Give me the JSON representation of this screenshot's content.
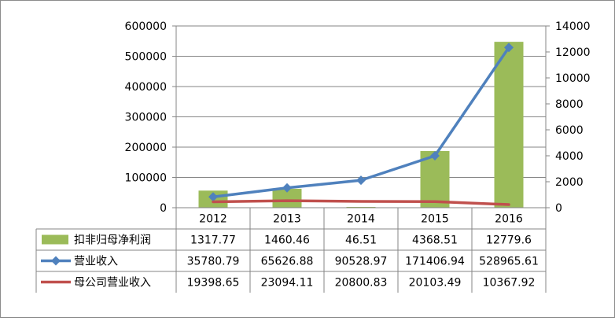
{
  "chart_data": {
    "type": "bar",
    "categories": [
      "2012",
      "2013",
      "2014",
      "2015",
      "2016"
    ],
    "left_axis": {
      "min": 0,
      "max": 600000,
      "step": 100000,
      "ticks": [
        "0",
        "100000",
        "200000",
        "300000",
        "400000",
        "500000",
        "600000"
      ]
    },
    "right_axis": {
      "min": 0,
      "max": 14000,
      "step": 2000,
      "ticks": [
        "0",
        "2000",
        "4000",
        "6000",
        "8000",
        "10000",
        "12000",
        "14000"
      ]
    },
    "series": [
      {
        "name": "扣非归母净利润",
        "type": "bar",
        "axis": "right",
        "color": "#9BBB59",
        "values": [
          1317.77,
          1460.46,
          46.51,
          4368.51,
          12779.6
        ],
        "labels": [
          "1317.77",
          "1460.46",
          "46.51",
          "4368.51",
          "12779.6"
        ]
      },
      {
        "name": "营业收入",
        "type": "line",
        "axis": "left",
        "color": "#4F81BD",
        "marker": "diamond",
        "values": [
          35780.79,
          65626.88,
          90528.97,
          171406.94,
          528965.61
        ],
        "labels": [
          "35780.79",
          "65626.88",
          "90528.97",
          "171406.94",
          "528965.61"
        ]
      },
      {
        "name": "母公司营业收入",
        "type": "line",
        "axis": "left",
        "color": "#C0504D",
        "marker": "none",
        "values": [
          19398.65,
          23094.11,
          20800.83,
          20103.49,
          10367.92
        ],
        "labels": [
          "19398.65",
          "23094.11",
          "20800.83",
          "20103.49",
          "10367.92"
        ]
      }
    ],
    "grid": true,
    "data_table": true,
    "legend": "data-table"
  }
}
